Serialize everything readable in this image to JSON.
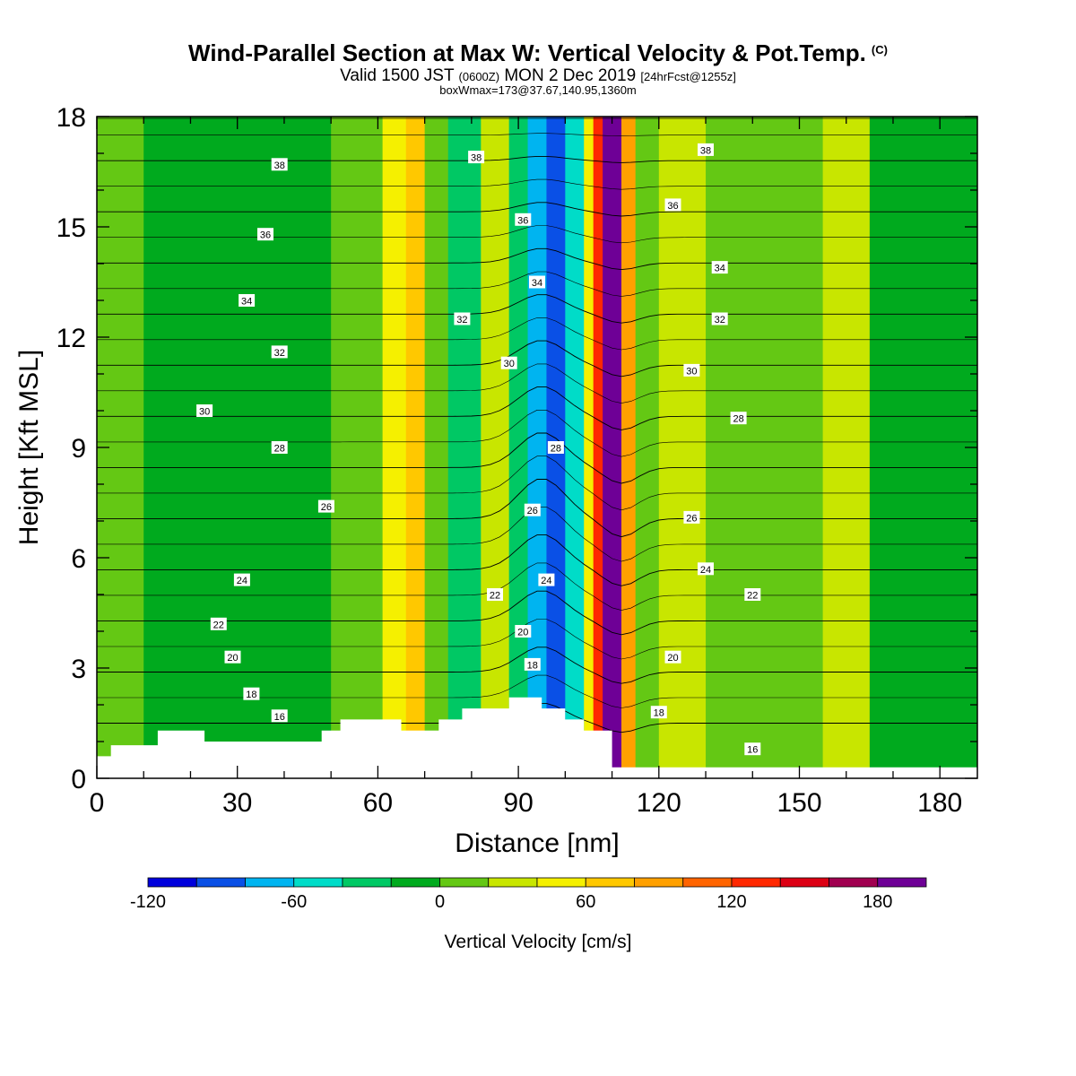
{
  "header": {
    "title": "Wind-Parallel Section at Max W: Vertical Velocity & Pot.Temp.",
    "copyright_mark": "(C)",
    "valid_prefix": "Valid 1500 JST",
    "valid_utc": "(0600Z)",
    "valid_date": "MON 2 Dec 2019",
    "forecast_info": "[24hrFcst@1255z]",
    "box_info": "boxWmax=173@37.67,140.95,1360m"
  },
  "chart_data": {
    "type": "heatmap",
    "xlabel": "Distance [nm]",
    "ylabel": "Height [Kft MSL]",
    "xlim": [
      0,
      188
    ],
    "ylim": [
      0,
      18
    ],
    "x_ticks": [
      0,
      30,
      60,
      90,
      120,
      150,
      180
    ],
    "y_ticks": [
      0,
      3,
      6,
      9,
      12,
      15,
      18
    ],
    "colorbar": {
      "label": "Vertical Velocity [cm/s]",
      "levels": [
        -120,
        -100,
        -80,
        -60,
        -40,
        -20,
        0,
        20,
        40,
        60,
        80,
        100,
        120,
        140,
        160,
        180,
        200
      ],
      "tick_labels": [
        -120,
        -60,
        0,
        60,
        120,
        180
      ],
      "colors": [
        "#0000dc",
        "#0a50e6",
        "#00b4f0",
        "#00dcc8",
        "#00c864",
        "#00aa1e",
        "#64c814",
        "#c8e600",
        "#f5f000",
        "#ffc800",
        "#ffa000",
        "#ff6400",
        "#ff2800",
        "#dc0014",
        "#a00050",
        "#6e0096"
      ]
    },
    "field_bands": [
      {
        "x_range": [
          0,
          10
        ],
        "value": 10
      },
      {
        "x_range": [
          10,
          50
        ],
        "value": -10
      },
      {
        "x_range": [
          50,
          61
        ],
        "value": 10
      },
      {
        "x_range": [
          61,
          66
        ],
        "value": 45
      },
      {
        "x_range": [
          66,
          70
        ],
        "value": 75
      },
      {
        "x_range": [
          70,
          75
        ],
        "value": 5
      },
      {
        "x_range": [
          75,
          82
        ],
        "value": -35
      },
      {
        "x_range": [
          82,
          88
        ],
        "value": 30
      },
      {
        "x_range": [
          88,
          92
        ],
        "value": -30
      },
      {
        "x_range": [
          92,
          96
        ],
        "value": -70
      },
      {
        "x_range": [
          96,
          100
        ],
        "value": -100
      },
      {
        "x_range": [
          100,
          104
        ],
        "value": -50
      },
      {
        "x_range": [
          104,
          106
        ],
        "value": 50
      },
      {
        "x_range": [
          106,
          108
        ],
        "value": 130
      },
      {
        "x_range": [
          108,
          112
        ],
        "value": 190
      },
      {
        "x_range": [
          112,
          115
        ],
        "value": 90
      },
      {
        "x_range": [
          115,
          120
        ],
        "value": 10
      },
      {
        "x_range": [
          120,
          130
        ],
        "value": 30
      },
      {
        "x_range": [
          130,
          155
        ],
        "value": 5
      },
      {
        "x_range": [
          155,
          165
        ],
        "value": 30
      },
      {
        "x_range": [
          165,
          188
        ],
        "value": -10
      }
    ],
    "terrain": {
      "x": [
        0,
        3,
        3,
        13,
        13,
        23,
        23,
        48,
        48,
        52,
        52,
        65,
        65,
        73,
        73,
        78,
        78,
        88,
        88,
        95,
        95,
        100,
        100,
        104,
        104,
        110,
        110,
        188
      ],
      "height": [
        0.6,
        0.6,
        0.9,
        0.9,
        1.3,
        1.3,
        1.0,
        1.0,
        1.3,
        1.3,
        1.6,
        1.6,
        1.3,
        1.3,
        1.6,
        1.6,
        1.9,
        1.9,
        2.2,
        2.2,
        1.9,
        1.9,
        1.6,
        1.6,
        1.3,
        1.3,
        0.3,
        0.3
      ]
    },
    "theta_contours": [
      {
        "level": 16,
        "labels": [
          {
            "x": 39,
            "y": 1.7
          },
          {
            "x": 140,
            "y": 0.8
          }
        ]
      },
      {
        "level": 18,
        "labels": [
          {
            "x": 33,
            "y": 2.3
          },
          {
            "x": 120,
            "y": 1.8
          },
          {
            "x": 93,
            "y": 3.1
          }
        ]
      },
      {
        "level": 20,
        "labels": [
          {
            "x": 29,
            "y": 3.3
          },
          {
            "x": 91,
            "y": 4.0
          },
          {
            "x": 123,
            "y": 3.3
          }
        ]
      },
      {
        "level": 22,
        "labels": [
          {
            "x": 26,
            "y": 4.2
          },
          {
            "x": 85,
            "y": 5.0
          },
          {
            "x": 140,
            "y": 5.0
          }
        ]
      },
      {
        "level": 24,
        "labels": [
          {
            "x": 31,
            "y": 5.4
          },
          {
            "x": 96,
            "y": 5.4
          },
          {
            "x": 130,
            "y": 5.7
          }
        ]
      },
      {
        "level": 26,
        "labels": [
          {
            "x": 49,
            "y": 7.4
          },
          {
            "x": 93,
            "y": 7.3
          },
          {
            "x": 127,
            "y": 7.1
          }
        ]
      },
      {
        "level": 28,
        "labels": [
          {
            "x": 39,
            "y": 9.0
          },
          {
            "x": 98,
            "y": 9.0
          },
          {
            "x": 137,
            "y": 9.8
          }
        ]
      },
      {
        "level": 30,
        "labels": [
          {
            "x": 23,
            "y": 10.0
          },
          {
            "x": 88,
            "y": 11.3
          },
          {
            "x": 127,
            "y": 11.1
          }
        ]
      },
      {
        "level": 32,
        "labels": [
          {
            "x": 39,
            "y": 11.6
          },
          {
            "x": 78,
            "y": 12.5
          },
          {
            "x": 133,
            "y": 12.5
          }
        ]
      },
      {
        "level": 34,
        "labels": [
          {
            "x": 32,
            "y": 13.0
          },
          {
            "x": 94,
            "y": 13.5
          },
          {
            "x": 133,
            "y": 13.9
          }
        ]
      },
      {
        "level": 36,
        "labels": [
          {
            "x": 36,
            "y": 14.8
          },
          {
            "x": 91,
            "y": 15.2
          },
          {
            "x": 123,
            "y": 15.6
          }
        ]
      },
      {
        "level": 38,
        "labels": [
          {
            "x": 39,
            "y": 16.7
          },
          {
            "x": 81,
            "y": 16.9
          },
          {
            "x": 130,
            "y": 17.1
          }
        ]
      }
    ]
  }
}
